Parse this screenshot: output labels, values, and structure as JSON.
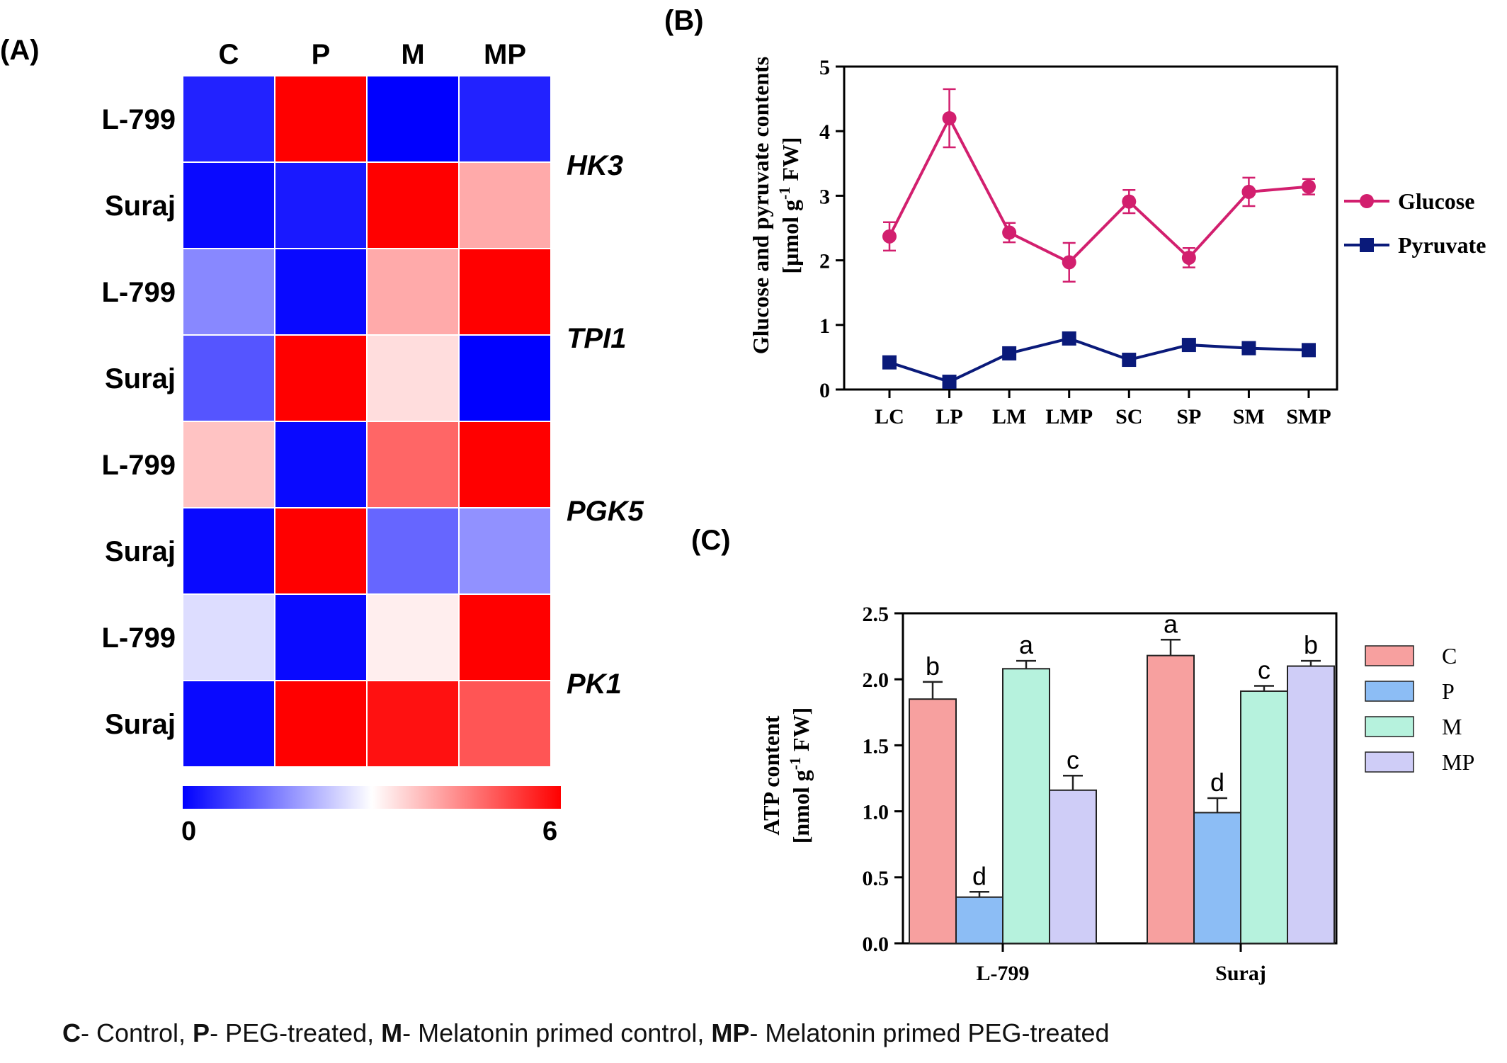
{
  "colors": {
    "heat_low": "#0000ff",
    "heat_mid": "#ffffff",
    "heat_high": "#ff0000",
    "glucose": "#d21f6e",
    "pyruvate": "#0a1a7a",
    "bar_C": "#f7a09f",
    "bar_P": "#8cbdf5",
    "bar_M": "#b6f2dd",
    "bar_MP": "#cfcdf7"
  },
  "chart_data": [
    {
      "panel": "(A)",
      "type": "heatmap",
      "columns": [
        "C",
        "P",
        "M",
        "MP"
      ],
      "rows": [
        {
          "label": "L-799",
          "gene": "HK3",
          "values": [
            0.4,
            6.0,
            0.0,
            0.4
          ]
        },
        {
          "label": "Suraj",
          "gene": "HK3",
          "values": [
            0.1,
            0.3,
            6.0,
            4.0
          ]
        },
        {
          "label": "L-799",
          "gene": "TPI1",
          "values": [
            1.6,
            0.1,
            4.0,
            6.0
          ]
        },
        {
          "label": "Suraj",
          "gene": "TPI1",
          "values": [
            1.0,
            6.0,
            3.4,
            0.0
          ]
        },
        {
          "label": "L-799",
          "gene": "PGK5",
          "values": [
            3.7,
            0.1,
            4.8,
            6.0
          ]
        },
        {
          "label": "Suraj",
          "gene": "PGK5",
          "values": [
            0.1,
            6.0,
            1.2,
            1.7
          ]
        },
        {
          "label": "L-799",
          "gene": "PK1",
          "values": [
            2.6,
            0.1,
            3.2,
            6.0
          ]
        },
        {
          "label": "Suraj",
          "gene": "PK1",
          "values": [
            0.1,
            6.0,
            5.8,
            5.0
          ]
        }
      ],
      "genes": [
        "HK3",
        "TPI1",
        "PGK5",
        "PK1"
      ],
      "scale": {
        "min_label": "0",
        "max_label": "6",
        "min": 0,
        "max": 6
      }
    },
    {
      "panel": "(B)",
      "type": "line",
      "x": [
        "LC",
        "LP",
        "LM",
        "LMP",
        "SC",
        "SP",
        "SM",
        "SMP"
      ],
      "ylabel_line1": "Glucose and pyruvate contents",
      "ylabel_line2_pre": "[µmol g",
      "ylabel_sup": "-1",
      "ylabel_line2_post": " FW]",
      "ylim": [
        0,
        5
      ],
      "yticks": [
        "0",
        "1",
        "2",
        "3",
        "4",
        "5"
      ],
      "legend_position": "right",
      "series": [
        {
          "name": "Glucose",
          "marker": "circle",
          "values": [
            2.37,
            4.2,
            2.43,
            1.97,
            2.91,
            2.04,
            3.06,
            3.14
          ],
          "errors": [
            0.22,
            0.45,
            0.15,
            0.3,
            0.18,
            0.15,
            0.22,
            0.12
          ]
        },
        {
          "name": "Pyruvate",
          "marker": "square",
          "values": [
            0.42,
            0.12,
            0.56,
            0.79,
            0.46,
            0.69,
            0.64,
            0.61
          ],
          "errors": [
            0,
            0,
            0,
            0,
            0,
            0,
            0,
            0
          ]
        }
      ]
    },
    {
      "panel": "(C)",
      "type": "bar",
      "categories": [
        "L-799",
        "Suraj"
      ],
      "ylabel_line1": "ATP content",
      "ylabel_line2_pre": "[nmol g",
      "ylabel_sup": "-1",
      "ylabel_line2_post": " FW]",
      "ylim": [
        0,
        2.5
      ],
      "yticks": [
        "0.0",
        "0.5",
        "1.0",
        "1.5",
        "2.0",
        "2.5"
      ],
      "legend_position": "right",
      "series": [
        {
          "name": "C",
          "values": [
            1.85,
            2.18
          ],
          "errors": [
            0.13,
            0.12
          ],
          "letters": [
            "b",
            "a"
          ]
        },
        {
          "name": "P",
          "values": [
            0.35,
            0.99
          ],
          "errors": [
            0.04,
            0.11
          ],
          "letters": [
            "d",
            "d"
          ]
        },
        {
          "name": "M",
          "values": [
            2.08,
            1.91
          ],
          "errors": [
            0.06,
            0.04
          ],
          "letters": [
            "a",
            "c"
          ]
        },
        {
          "name": "MP",
          "values": [
            1.16,
            2.1
          ],
          "errors": [
            0.11,
            0.04
          ],
          "letters": [
            "c",
            "b"
          ]
        }
      ]
    }
  ],
  "caption": [
    {
      "key": "C",
      "text": "- Control, "
    },
    {
      "key": "P",
      "text": "- PEG-treated, "
    },
    {
      "key": "M",
      "text": "- Melatonin primed control, "
    },
    {
      "key": "MP",
      "text": "- Melatonin primed PEG-treated"
    }
  ]
}
